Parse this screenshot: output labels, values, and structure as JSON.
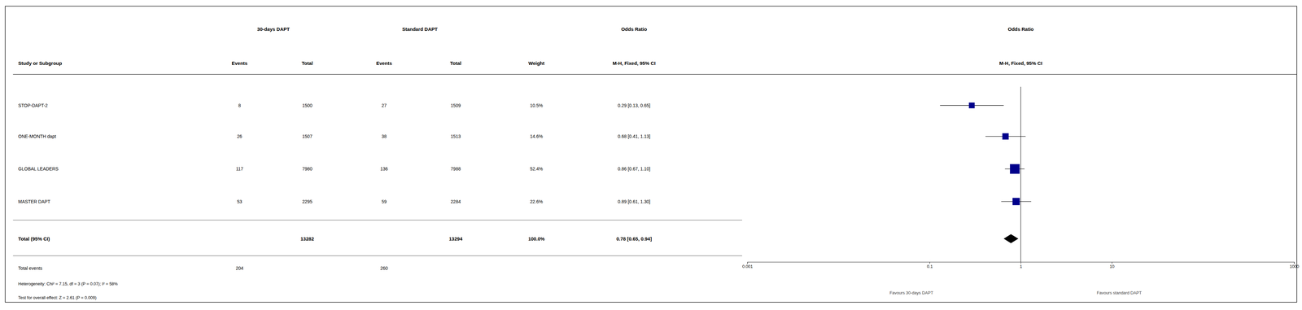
{
  "chart_data": {
    "type": "forest",
    "column_groups": [
      "30-days DAPT",
      "Standard DAPT",
      "Odds Ratio",
      "Odds Ratio"
    ],
    "column_headers": [
      "Study or Subgroup",
      "Events",
      "Total",
      "Events",
      "Total",
      "Weight",
      "M-H, Fixed, 95% CI",
      "M-H, Fixed, 95% CI"
    ],
    "categories": [
      "STOP-DAPT-2",
      "ONE-MONTH dapt",
      "GLOBAL LEADERS",
      "MASTER DAPT"
    ],
    "events_30d": [
      8,
      26,
      117,
      53
    ],
    "total_30d": [
      1500,
      1507,
      7980,
      2295
    ],
    "events_std": [
      27,
      38,
      136,
      59
    ],
    "total_std": [
      1509,
      1513,
      7988,
      2284
    ],
    "weights": [
      10.5,
      14.6,
      52.4,
      22.6
    ],
    "weight_labels": [
      "10.5%",
      "14.6%",
      "52.4%",
      "22.6%"
    ],
    "values": [
      0.29,
      0.68,
      0.86,
      0.89
    ],
    "lower": [
      0.13,
      0.41,
      0.67,
      0.61
    ],
    "upper": [
      0.65,
      1.13,
      1.1,
      1.3
    ],
    "value_labels": [
      "0.29 [0.13, 0.65]",
      "0.68 [0.41, 1.13]",
      "0.86 [0.67, 1.10]",
      "0.89 [0.61, 1.30]"
    ],
    "color": "#00008B",
    "total": {
      "label": "Total (95% CI)",
      "total_30d": 13282,
      "total_std": 13294,
      "weight": 100.0,
      "weight_label": "100.0%",
      "value": 0.78,
      "lower": 0.65,
      "upper": 0.94,
      "value_label": "0.78 [0.65, 0.94]",
      "color": "#000000",
      "events_label": "Total events",
      "events_30d": 204,
      "events_std": 260
    },
    "annotations": [
      "Heterogeneity: Chi² = 7.15, df = 3 (P = 0.07); I² = 58%",
      "Test for overall effect: Z = 2.61 (P = 0.009)"
    ],
    "xlabel_left": "Favours 30-days DAPT",
    "xlabel_right": "Favours standard DAPT",
    "reference_line": 1,
    "xlim": [
      0.001,
      1000
    ],
    "xticks": [
      0.001,
      0.1,
      1,
      10,
      1000
    ],
    "log": "x",
    "grid": false
  }
}
